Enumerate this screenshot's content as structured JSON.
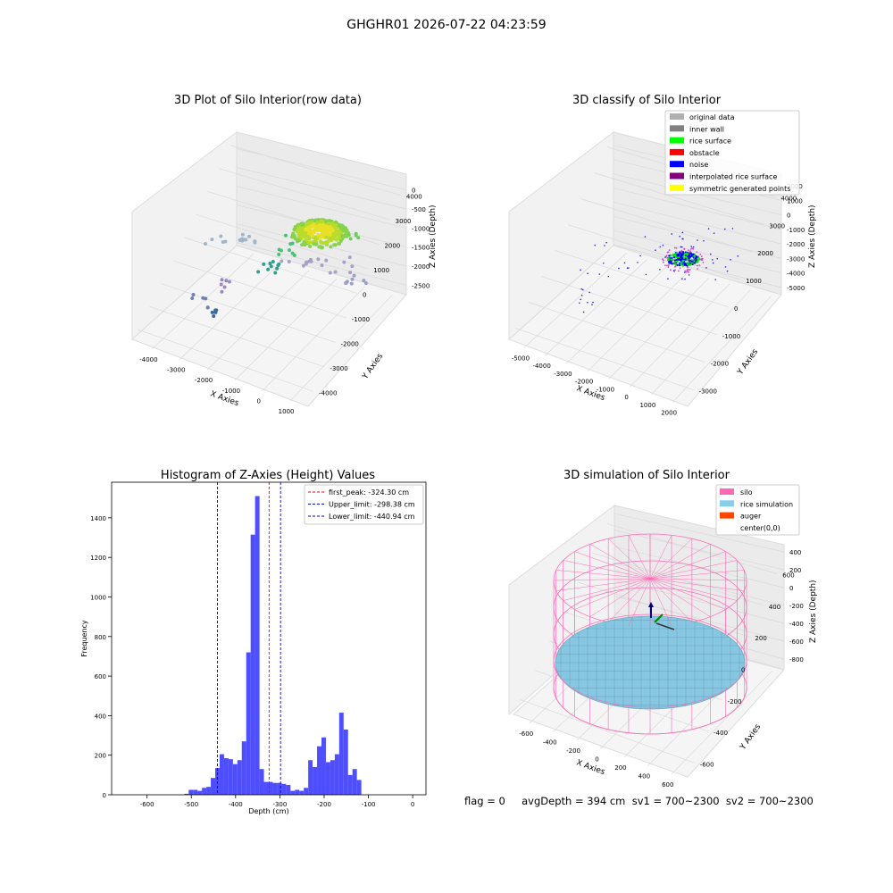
{
  "suptitle": "GHGHR01 2026-07-22 04:23:59",
  "chart_data": [
    {
      "type": "scatter",
      "projection": "3d",
      "title": "3D Plot of Silo Interior(row data)",
      "xlabel": "X Axies",
      "ylabel": "Y Axies",
      "zlabel": "Z Axies (Depth)",
      "xticks": [
        "-4000",
        "-3000",
        "-2000",
        "-1000",
        "0",
        "1000"
      ],
      "yticks": [
        "-4000",
        "-3000",
        "-2000",
        "-1000",
        "0",
        "1000",
        "2000",
        "3000",
        "4000"
      ],
      "zticks": [
        "0",
        "-500",
        "-1000",
        "-1500",
        "-2000",
        "-2500"
      ],
      "colormap": "viridis"
    },
    {
      "type": "scatter",
      "projection": "3d",
      "title": "3D classify of Silo Interior",
      "xlabel": "X Axies",
      "ylabel": "Y Axies",
      "zlabel": "Z Axies (Depth)",
      "xticks": [
        "-5000",
        "-4000",
        "-3000",
        "-2000",
        "-1000",
        "0",
        "1000",
        "2000"
      ],
      "yticks": [
        "-3000",
        "-2000",
        "-1000",
        "0",
        "1000",
        "2000",
        "3000",
        "4000"
      ],
      "zticks": [
        "2000",
        "1000",
        "0",
        "-1000",
        "-2000",
        "-3000",
        "-4000",
        "-5000"
      ],
      "legend": [
        {
          "label": "original data",
          "color": "#b0b0b0"
        },
        {
          "label": "inner wall",
          "color": "#808080"
        },
        {
          "label": "rice surface",
          "color": "#00ff00"
        },
        {
          "label": "obstacle",
          "color": "#ff0000"
        },
        {
          "label": "noise",
          "color": "#0000ff"
        },
        {
          "label": "interpolated rice surface",
          "color": "#800080"
        },
        {
          "label": "symmetric generated points",
          "color": "#ffff00"
        }
      ],
      "legend_loc": "upper right"
    },
    {
      "type": "bar",
      "title": "Histogram of Z-Axies (Height) Values",
      "xlabel": "Depth (cm)",
      "ylabel": "Frequency",
      "xlim": [
        -680,
        30
      ],
      "ylim": [
        0,
        1580
      ],
      "bin_width": 10,
      "bar_color": "#4444ff",
      "xticks": [
        "-600",
        "-500",
        "-400",
        "-300",
        "-200",
        "-100",
        "0"
      ],
      "yticks": [
        "0",
        "200",
        "400",
        "600",
        "800",
        "1000",
        "1200",
        "1400"
      ],
      "bins": [
        [
          -530,
          5
        ],
        [
          -520,
          25
        ],
        [
          -510,
          25
        ],
        [
          -500,
          20
        ],
        [
          -490,
          35
        ],
        [
          -480,
          40
        ],
        [
          -470,
          85
        ],
        [
          -460,
          135
        ],
        [
          -450,
          205
        ],
        [
          -440,
          185
        ],
        [
          -430,
          180
        ],
        [
          -420,
          155
        ],
        [
          -410,
          175
        ],
        [
          -400,
          270
        ],
        [
          -390,
          720
        ],
        [
          -380,
          1315
        ],
        [
          -370,
          1510
        ],
        [
          -360,
          130
        ],
        [
          -350,
          65
        ],
        [
          -340,
          65
        ],
        [
          -330,
          60
        ],
        [
          -320,
          60
        ],
        [
          -310,
          55
        ],
        [
          -300,
          50
        ],
        [
          -290,
          20
        ],
        [
          -280,
          25
        ],
        [
          -270,
          20
        ],
        [
          -260,
          35
        ],
        [
          -250,
          175
        ],
        [
          -240,
          140
        ],
        [
          -230,
          245
        ],
        [
          -220,
          290
        ],
        [
          -210,
          165
        ],
        [
          -200,
          175
        ],
        [
          -190,
          205
        ],
        [
          -180,
          415
        ],
        [
          -170,
          330
        ],
        [
          -160,
          100
        ],
        [
          -150,
          130
        ],
        [
          -140,
          75
        ]
      ],
      "vlines": [
        {
          "label": "first_peak: -324.30 cm",
          "x": -324.3,
          "color": "#ff0000"
        },
        {
          "label": "Upper_limit: -298.38 cm",
          "x": -298.38,
          "color": "#0000cc"
        },
        {
          "label": "Lower_limit: -440.94 cm",
          "x": -440.94,
          "color": "#0000cc"
        }
      ]
    },
    {
      "type": "surface",
      "projection": "3d",
      "title": "3D simulation of Silo Interior",
      "xlabel": "X Axies",
      "ylabel": "Y Axies",
      "zlabel": "Z Axies (Depth)",
      "xticks": [
        "-600",
        "-400",
        "-200",
        "0",
        "200",
        "400",
        "600"
      ],
      "yticks": [
        "-600",
        "-400",
        "-200",
        "0",
        "200",
        "400",
        "600"
      ],
      "zticks": [
        "400",
        "200",
        "0",
        "-200",
        "-400",
        "-600",
        "-800"
      ],
      "legend": [
        {
          "label": "silo",
          "color": "#ff69b4"
        },
        {
          "label": "rice simulation",
          "color": "#87ceeb"
        },
        {
          "label": "auger",
          "color": "#ff4500"
        },
        {
          "label": "center(0,0)",
          "color": ""
        }
      ]
    }
  ],
  "status_line": "flag = 0     avgDepth = 394 cm  sv1 = 700~2300  sv2 = 700~2300"
}
